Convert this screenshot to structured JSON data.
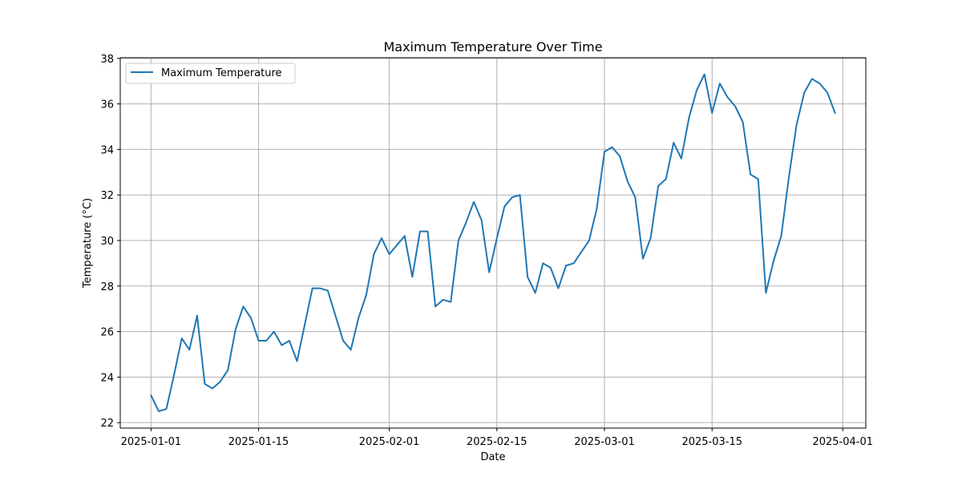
{
  "chart_data": {
    "type": "line",
    "title": "Maximum Temperature Over Time",
    "xlabel": "Date",
    "ylabel": "Temperature (°C)",
    "xlim": [
      "2024-12-28",
      "2025-04-04"
    ],
    "ylim": [
      21.76,
      38.03
    ],
    "grid": true,
    "legend_position": "top-left",
    "x_ticks": [
      "2025-01-01",
      "2025-01-15",
      "2025-02-01",
      "2025-02-15",
      "2025-03-01",
      "2025-03-15",
      "2025-04-01"
    ],
    "y_ticks": [
      22,
      24,
      26,
      28,
      30,
      32,
      34,
      36,
      38
    ],
    "series": [
      {
        "name": "Maximum Temperature",
        "color": "#1f77b4",
        "x_start": "2025-01-01",
        "x_step_days": 1,
        "values": [
          23.2,
          22.5,
          22.6,
          24.1,
          25.7,
          25.2,
          26.7,
          23.7,
          23.5,
          23.8,
          24.3,
          26.1,
          27.1,
          26.6,
          25.6,
          25.6,
          26.0,
          25.4,
          25.6,
          24.7,
          26.3,
          27.9,
          27.9,
          27.8,
          26.7,
          25.6,
          25.2,
          26.6,
          27.6,
          29.4,
          30.1,
          29.4,
          29.8,
          30.2,
          28.4,
          30.4,
          30.4,
          27.1,
          27.4,
          27.3,
          30.0,
          30.8,
          31.7,
          30.9,
          28.6,
          30.1,
          31.5,
          31.9,
          32.0,
          28.4,
          27.7,
          29.0,
          28.8,
          27.9,
          28.9,
          29.0,
          29.5,
          30.0,
          31.4,
          33.9,
          34.1,
          33.7,
          32.6,
          31.9,
          29.2,
          30.1,
          32.4,
          32.7,
          34.3,
          33.6,
          35.4,
          36.6,
          37.3,
          35.6,
          36.9,
          36.3,
          35.9,
          35.2,
          32.9,
          32.7,
          27.7,
          29.1,
          30.2,
          32.8,
          35.1,
          36.5,
          37.1,
          36.9,
          36.5,
          35.6
        ]
      }
    ]
  }
}
